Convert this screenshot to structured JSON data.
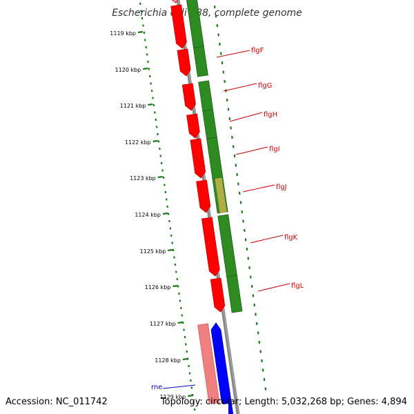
{
  "title": "Escherichia coli S88, complete genome",
  "footer": {
    "accession": "Accession: NC_011742",
    "summary": "Topology: circular; Length: 5,032,268 bp; Genes: 4,894"
  },
  "colors": {
    "backbone": "#808080",
    "forward_cds": "#ff0000",
    "reverse_cds": "#2e8b22",
    "blue_feature": "#0000ff",
    "pink_feature": "#f08080",
    "tick": "#1a7a1a",
    "red_label": "#cc0000",
    "blue_label": "#0000cc"
  },
  "kbp_ticks": [
    {
      "label": "1119 kbp"
    },
    {
      "label": "1120 kbp"
    },
    {
      "label": "1121 kbp"
    },
    {
      "label": "1122 kbp"
    },
    {
      "label": "1123 kbp"
    },
    {
      "label": "1124 kbp"
    },
    {
      "label": "1125 kbp"
    },
    {
      "label": "1126 kbp"
    },
    {
      "label": "1127 kbp"
    },
    {
      "label": "1128 kbp"
    },
    {
      "label": "1129 kbp"
    }
  ],
  "gene_labels": [
    {
      "name": "flgF",
      "color": "red"
    },
    {
      "name": "flgG",
      "color": "red"
    },
    {
      "name": "flgH",
      "color": "red"
    },
    {
      "name": "flgI",
      "color": "red"
    },
    {
      "name": "flgJ",
      "color": "red"
    },
    {
      "name": "flgK",
      "color": "red"
    },
    {
      "name": "flgL",
      "color": "red"
    },
    {
      "name": "rne",
      "color": "blue"
    }
  ]
}
